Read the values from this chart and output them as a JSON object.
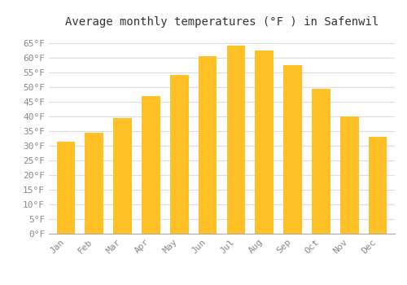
{
  "title": "Average monthly temperatures (°F ) in Safenwil",
  "months": [
    "Jan",
    "Feb",
    "Mar",
    "Apr",
    "May",
    "Jun",
    "Jul",
    "Aug",
    "Sep",
    "Oct",
    "Nov",
    "Dec"
  ],
  "values": [
    31.5,
    34.5,
    39.5,
    47.0,
    54.0,
    60.5,
    64.0,
    62.5,
    57.5,
    49.5,
    40.0,
    33.0
  ],
  "bar_color_top": "#FFC125",
  "bar_color_bottom": "#FFB020",
  "background_color": "#ffffff",
  "grid_color": "#dddddd",
  "ylim": [
    0,
    68
  ],
  "yticks": [
    0,
    5,
    10,
    15,
    20,
    25,
    30,
    35,
    40,
    45,
    50,
    55,
    60,
    65
  ],
  "title_fontsize": 10,
  "tick_fontsize": 8,
  "tick_font_color": "#888888",
  "title_color": "#333333"
}
